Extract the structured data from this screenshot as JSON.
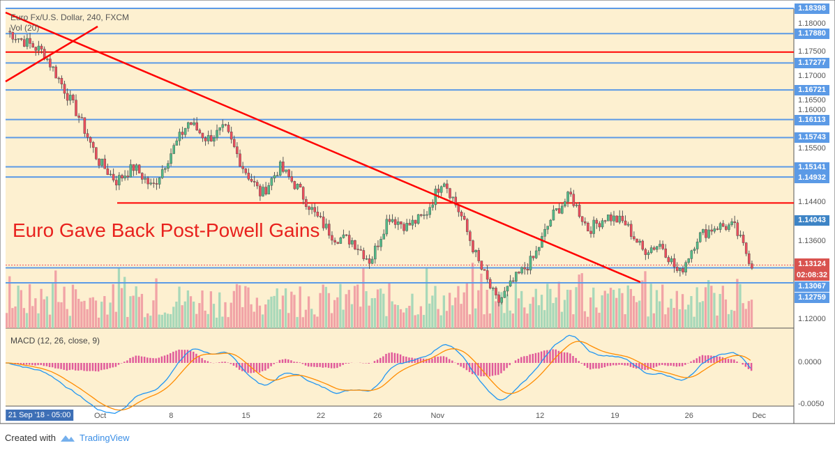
{
  "header": {
    "title": "Euro Fx/U.S. Dollar, 240, FXCM",
    "volume_label": "Vol (20)",
    "macd_label": "MACD (12, 26, close, 9)"
  },
  "annotation": "Euro Gave Back Post-Powell Gains",
  "footer": {
    "created_with": "Created with",
    "brand": "TradingView"
  },
  "colors": {
    "background": "#fdf0d0",
    "up": "#53b987",
    "down": "#eb4d5c",
    "level_line": "#5b9ae6",
    "trend_line": "#ff0000",
    "macd": "#2196f3",
    "signal": "#ff8c00"
  },
  "chart_data": {
    "type": "candlestick",
    "symbol": "EURUSD",
    "timeframe": "240",
    "price_ticks": [
      "1.18000",
      "1.17500",
      "1.17000",
      "1.16500",
      "1.16000",
      "1.15500",
      "1.14400",
      "1.13600",
      "1.12000"
    ],
    "price_range": [
      1.1165,
      1.18398
    ],
    "macd_ticks": [
      "0.0000",
      "-0.0050"
    ],
    "x_labels": [
      "21 Sep '18 - 05:00",
      "Oct",
      "8",
      "15",
      "22",
      "26",
      "Nov",
      "12",
      "19",
      "26",
      "Dec"
    ],
    "x_label_pos": [
      0.043,
      0.12,
      0.21,
      0.305,
      0.4,
      0.472,
      0.548,
      0.678,
      0.773,
      0.867,
      0.956
    ],
    "close_path": [
      1.1793,
      1.1771,
      1.175,
      1.1685,
      1.1614,
      1.1528,
      1.1485,
      1.1514,
      1.1471,
      1.1542,
      1.1607,
      1.1571,
      1.1592,
      1.1513,
      1.1456,
      1.1514,
      1.1471,
      1.1413,
      1.137,
      1.1363,
      1.132,
      1.1413,
      1.1392,
      1.1413,
      1.1492,
      1.1413,
      1.1313,
      1.1234,
      1.1285,
      1.1327,
      1.1413,
      1.1456,
      1.1385,
      1.1413,
      1.1399,
      1.1342,
      1.1356,
      1.1292,
      1.137,
      1.1392,
      1.1392,
      1.1313
    ],
    "level_lines": [
      {
        "label": "1.18398",
        "price": 1.18398
      },
      {
        "label": "1.17880",
        "price": 1.1788
      },
      {
        "label": "1.17277",
        "price": 1.17277
      },
      {
        "label": "1.16721",
        "price": 1.16721
      },
      {
        "label": "1.16113",
        "price": 1.16113
      },
      {
        "label": "1.15743",
        "price": 1.15743
      },
      {
        "label": "1.15141",
        "price": 1.15141
      },
      {
        "label": "1.14932",
        "price": 1.14932
      },
      {
        "label": "1.13067",
        "price": 1.13067
      },
      {
        "label": "1.12759",
        "price": 1.12759
      }
    ],
    "horizontal_red": [
      {
        "price": 1.175
      },
      {
        "price": 1.144
      }
    ],
    "last_price": {
      "label": "1.14043",
      "price": 1.14043
    },
    "current_price": {
      "label": "1.13124",
      "price": 1.13124,
      "countdown": "02:08:32"
    }
  }
}
